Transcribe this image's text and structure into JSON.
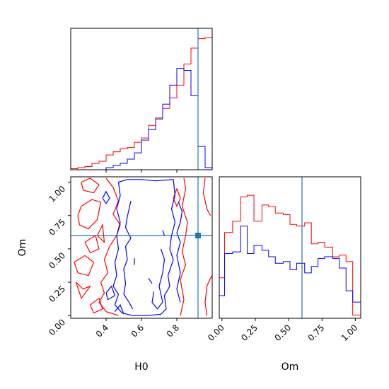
{
  "chart_data": {
    "type": "corner",
    "parameters": [
      "H0",
      "Om"
    ],
    "axis_labels": {
      "x_bottom_left": "H0",
      "x_bottom_right": "Om",
      "y_left": "Om"
    },
    "truth": {
      "H0": 0.92,
      "Om": 0.6
    },
    "colors": {
      "series_a": "#ff0000",
      "series_b": "#0000ff",
      "truth": "#1f77b4"
    },
    "axes": {
      "H0": {
        "lim": [
          0.2,
          1.0
        ],
        "ticks": [
          "0.4",
          "0.6",
          "0.8"
        ],
        "tick_values": [
          0.4,
          0.6,
          0.8
        ]
      },
      "Om": {
        "lim": [
          -0.02,
          1.04
        ],
        "ticks": [
          "0.00",
          "0.25",
          "0.50",
          "0.75",
          "1.00"
        ],
        "tick_values": [
          0,
          0.25,
          0.5,
          0.75,
          1.0
        ]
      }
    },
    "hist_H0": {
      "bin_edges": [
        0.2,
        0.24,
        0.28,
        0.32,
        0.36,
        0.4,
        0.44,
        0.48,
        0.52,
        0.56,
        0.6,
        0.64,
        0.68,
        0.72,
        0.76,
        0.8,
        0.84,
        0.88,
        0.92,
        0.96,
        1.0
      ],
      "series": [
        {
          "values": [
            1,
            2,
            3,
            6,
            8,
            14,
            17,
            20,
            21,
            26,
            30,
            42,
            49,
            58,
            68,
            80,
            100,
            115,
            124,
            125,
            100
          ]
        },
        {
          "values": [
            0,
            0,
            0,
            0,
            0,
            2,
            4,
            6,
            10,
            16,
            28,
            38,
            48,
            62,
            80,
            96,
            94,
            70,
            22,
            2,
            0
          ]
        }
      ]
    },
    "hist_Om": {
      "bin_edges": [
        -0.02,
        0.02,
        0.08,
        0.14,
        0.19,
        0.24,
        0.3,
        0.35,
        0.4,
        0.46,
        0.51,
        0.56,
        0.62,
        0.67,
        0.72,
        0.77,
        0.83,
        0.88,
        0.93,
        0.98,
        1.04
      ],
      "series": [
        {
          "values": [
            25,
            53,
            60,
            75,
            76,
            60,
            70,
            69,
            65,
            64,
            58,
            57,
            59,
            46,
            47,
            44,
            38,
            39,
            35,
            2
          ]
        },
        {
          "values": [
            14,
            40,
            41,
            57,
            40,
            45,
            42,
            38,
            34,
            35,
            30,
            34,
            28,
            32,
            37,
            38,
            37,
            31,
            17,
            10
          ]
        }
      ]
    },
    "contours": [
      {
        "series": 0,
        "paths": [
          [
            [
              0.24,
              0.75
            ],
            [
              0.26,
              0.82
            ],
            [
              0.32,
              0.87
            ],
            [
              0.37,
              0.85
            ],
            [
              0.35,
              0.72
            ],
            [
              0.3,
              0.65
            ],
            [
              0.25,
              0.68
            ],
            [
              0.24,
              0.75
            ]
          ],
          [
            [
              0.26,
              1.0
            ],
            [
              0.31,
              1.03
            ],
            [
              0.36,
              0.98
            ],
            [
              0.33,
              0.92
            ],
            [
              0.27,
              0.94
            ],
            [
              0.26,
              1.0
            ]
          ],
          [
            [
              0.22,
              0.4
            ],
            [
              0.28,
              0.45
            ],
            [
              0.33,
              0.4
            ],
            [
              0.3,
              0.3
            ],
            [
              0.24,
              0.32
            ],
            [
              0.22,
              0.4
            ]
          ],
          [
            [
              0.28,
              0.55
            ],
            [
              0.34,
              0.6
            ],
            [
              0.36,
              0.5
            ],
            [
              0.31,
              0.47
            ],
            [
              0.28,
              0.55
            ]
          ],
          [
            [
              0.23,
              0.25
            ],
            [
              0.27,
              0.2
            ],
            [
              0.31,
              0.22
            ],
            [
              0.26,
              0.13
            ],
            [
              0.23,
              0.25
            ]
          ],
          [
            [
              0.31,
              0.08
            ],
            [
              0.36,
              0.13
            ],
            [
              0.38,
              0.05
            ],
            [
              0.33,
              0.02
            ],
            [
              0.31,
              0.08
            ]
          ],
          [
            [
              0.4,
              1.03
            ],
            [
              0.44,
              0.96
            ],
            [
              0.47,
              0.86
            ],
            [
              0.44,
              0.76
            ],
            [
              0.48,
              0.68
            ],
            [
              0.46,
              0.6
            ],
            [
              0.42,
              0.52
            ],
            [
              0.39,
              0.42
            ],
            [
              0.41,
              0.32
            ],
            [
              0.37,
              0.25
            ],
            [
              0.39,
              0.17
            ],
            [
              0.36,
              0.1
            ],
            [
              0.4,
              0.03
            ],
            [
              0.47,
              0.0
            ]
          ],
          [
            [
              0.84,
              1.03
            ],
            [
              0.85,
              0.95
            ],
            [
              0.83,
              0.82
            ],
            [
              0.86,
              0.7
            ],
            [
              0.85,
              0.6
            ],
            [
              0.83,
              0.48
            ],
            [
              0.85,
              0.38
            ],
            [
              0.82,
              0.27
            ],
            [
              0.84,
              0.12
            ],
            [
              0.82,
              0.0
            ]
          ],
          [
            [
              0.78,
              0.88
            ],
            [
              0.8,
              0.95
            ],
            [
              0.82,
              0.88
            ],
            [
              0.8,
              0.82
            ],
            [
              0.78,
              0.88
            ]
          ],
          [
            [
              0.97,
              0.0
            ],
            [
              0.96,
              0.1
            ],
            [
              0.97,
              0.22
            ],
            [
              0.99,
              0.28
            ],
            [
              1.0,
              0.3
            ]
          ],
          [
            [
              0.96,
              1.03
            ],
            [
              0.95,
              0.92
            ],
            [
              0.97,
              0.8
            ],
            [
              0.99,
              0.75
            ]
          ],
          [
            [
              0.35,
              0.6
            ],
            [
              0.38,
              0.68
            ],
            [
              0.39,
              0.55
            ],
            [
              0.35,
              0.6
            ]
          ]
        ]
      },
      {
        "series": 1,
        "paths": [
          [
            [
              0.47,
              1.0
            ],
            [
              0.52,
              1.02
            ],
            [
              0.6,
              1.02
            ],
            [
              0.68,
              1.01
            ],
            [
              0.78,
              1.02
            ],
            [
              0.79,
              0.9
            ],
            [
              0.77,
              0.8
            ],
            [
              0.79,
              0.7
            ],
            [
              0.77,
              0.6
            ],
            [
              0.76,
              0.5
            ],
            [
              0.78,
              0.42
            ],
            [
              0.75,
              0.3
            ],
            [
              0.76,
              0.22
            ],
            [
              0.73,
              0.15
            ],
            [
              0.74,
              0.05
            ],
            [
              0.71,
              0.01
            ],
            [
              0.63,
              0.0
            ],
            [
              0.55,
              0.0
            ],
            [
              0.49,
              0.02
            ],
            [
              0.45,
              0.08
            ],
            [
              0.47,
              0.16
            ],
            [
              0.44,
              0.22
            ],
            [
              0.46,
              0.3
            ],
            [
              0.45,
              0.4
            ],
            [
              0.47,
              0.5
            ],
            [
              0.46,
              0.6
            ],
            [
              0.48,
              0.7
            ],
            [
              0.46,
              0.8
            ],
            [
              0.48,
              0.9
            ],
            [
              0.47,
              1.0
            ]
          ],
          [
            [
              0.54,
              0.86
            ],
            [
              0.52,
              0.74
            ],
            [
              0.51,
              0.66
            ],
            [
              0.54,
              0.58
            ],
            [
              0.51,
              0.52
            ],
            [
              0.52,
              0.42
            ],
            [
              0.5,
              0.35
            ],
            [
              0.51,
              0.24
            ],
            [
              0.5,
              0.16
            ],
            [
              0.53,
              0.1
            ],
            [
              0.55,
              0.05
            ]
          ],
          [
            [
              0.71,
              0.5
            ],
            [
              0.73,
              0.42
            ],
            [
              0.72,
              0.32
            ],
            [
              0.7,
              0.22
            ],
            [
              0.72,
              0.1
            ],
            [
              0.69,
              0.05
            ],
            [
              0.66,
              0.1
            ],
            [
              0.67,
              0.18
            ]
          ],
          [
            [
              0.81,
              0.85
            ],
            [
              0.83,
              0.78
            ],
            [
              0.82,
              0.7
            ],
            [
              0.8,
              0.62
            ],
            [
              0.82,
              0.55
            ],
            [
              0.8,
              0.45
            ],
            [
              0.82,
              0.32
            ],
            [
              0.8,
              0.2
            ],
            [
              0.82,
              0.1
            ]
          ],
          [
            [
              0.38,
              0.88
            ],
            [
              0.4,
              0.93
            ],
            [
              0.42,
              0.88
            ],
            [
              0.4,
              0.84
            ],
            [
              0.38,
              0.88
            ]
          ],
          [
            [
              0.4,
              0.17
            ],
            [
              0.43,
              0.22
            ],
            [
              0.45,
              0.15
            ],
            [
              0.41,
              0.12
            ],
            [
              0.4,
              0.17
            ]
          ],
          [
            [
              0.45,
              0.03
            ],
            [
              0.48,
              0.08
            ],
            [
              0.5,
              0.01
            ]
          ],
          [
            [
              0.56,
              0.38
            ],
            [
              0.56,
              0.43
            ]
          ],
          [
            [
              0.64,
              0.28
            ],
            [
              0.66,
              0.24
            ]
          ],
          [
            [
              0.72,
              0.64
            ],
            [
              0.73,
              0.6
            ]
          ]
        ]
      }
    ]
  }
}
